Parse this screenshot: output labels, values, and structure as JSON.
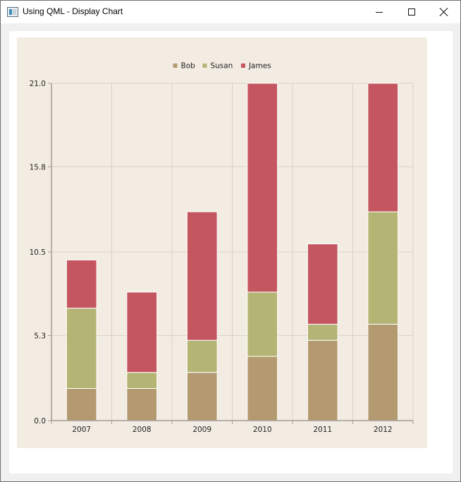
{
  "window": {
    "title": "Using QML - Display Chart"
  },
  "icons": {
    "app": "app-window-icon",
    "minimize": "minimize-icon",
    "maximize": "maximize-icon",
    "close": "close-icon"
  },
  "colors": {
    "panel_background": "#f3ece2",
    "grid": "#d8d2c6",
    "axis": "#a29c94",
    "bob": "#b49a70",
    "susan": "#b4b474",
    "james": "#c45660"
  },
  "chart_data": {
    "type": "bar",
    "stacked": true,
    "categories": [
      "2007",
      "2008",
      "2009",
      "2010",
      "2011",
      "2012"
    ],
    "series": [
      {
        "name": "Bob",
        "values": [
          2,
          2,
          3,
          4,
          5,
          6
        ]
      },
      {
        "name": "Susan",
        "values": [
          5,
          1,
          2,
          4,
          1,
          7
        ]
      },
      {
        "name": "James",
        "values": [
          3,
          5,
          8,
          13,
          5,
          8
        ]
      }
    ],
    "ylim": [
      0.0,
      21.0
    ],
    "yticks": [
      "0.0",
      "5.3",
      "10.5",
      "15.8",
      "21.0"
    ],
    "title": "",
    "xlabel": "",
    "ylabel": "",
    "legend_position": "top",
    "grid": true
  }
}
